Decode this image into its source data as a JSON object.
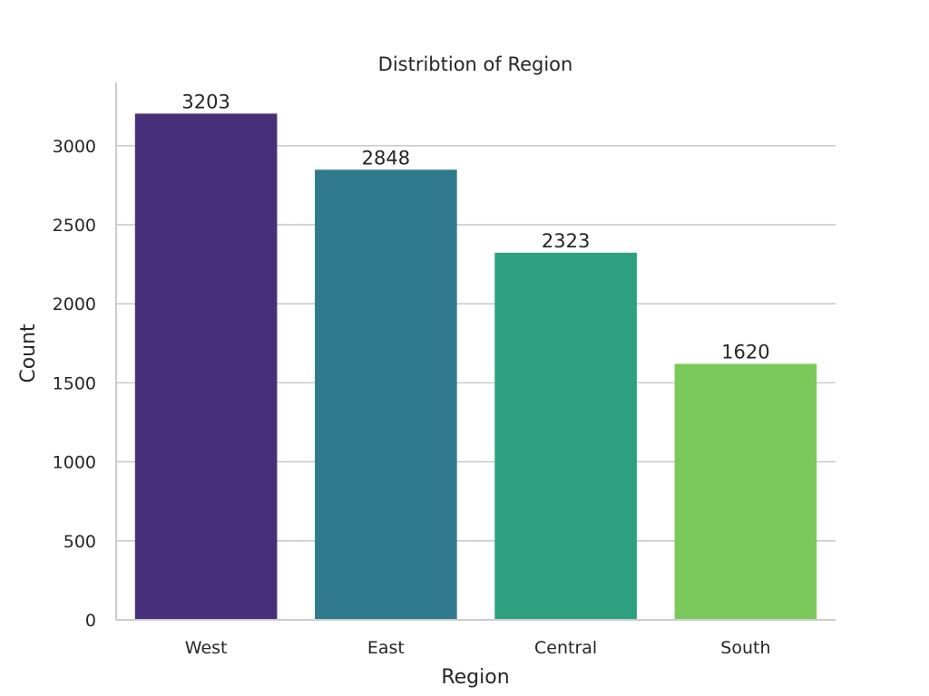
{
  "chart_data": {
    "type": "bar",
    "title": "Distribtion of Region",
    "xlabel": "Region",
    "ylabel": "Count",
    "categories": [
      "West",
      "East",
      "Central",
      "South"
    ],
    "values": [
      3203,
      2848,
      2323,
      1620
    ],
    "colors": [
      "#482f7a",
      "#2f7a8c",
      "#2da17f",
      "#7bc95a"
    ],
    "ylim": [
      0,
      3400
    ],
    "yticks": [
      0,
      500,
      1000,
      1500,
      2000,
      2500,
      3000
    ],
    "grid": "horizontal",
    "legend": "none"
  }
}
